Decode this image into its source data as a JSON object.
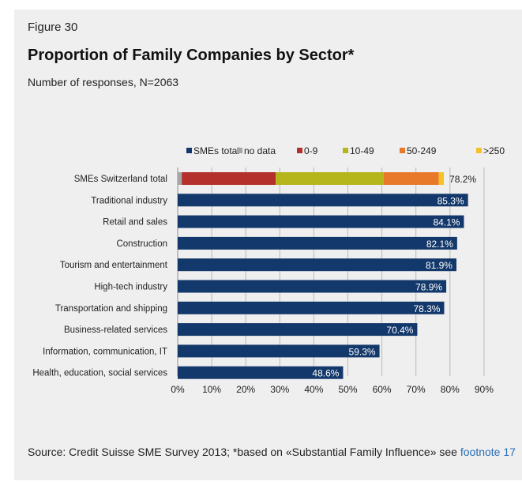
{
  "figure_label": "Figure 30",
  "title": "Proportion of Family Companies by Sector*",
  "subtitle": "Number of responses, N=2063",
  "source_text": "Source: Credit Suisse SME Survey 2013; *based on «Substantial Family Influence» see ",
  "source_link": "footnote 17",
  "colors": {
    "background": "#efefef",
    "smes_total": "#13386b",
    "no_data": "#a6a6a6",
    "size_0_9": "#b3302b",
    "size_10_49": "#b5b51c",
    "size_50_249": "#e8792a",
    "size_250_plus": "#f5c22a",
    "link": "#2a6db5"
  },
  "chart_data": {
    "type": "bar",
    "orientation": "horizontal",
    "stacked_first_row": true,
    "xlim": [
      0,
      90
    ],
    "xticks": [
      "0%",
      "10%",
      "20%",
      "30%",
      "40%",
      "50%",
      "60%",
      "70%",
      "80%",
      "90%"
    ],
    "grid": "vertical",
    "legend_position": "top",
    "legend": [
      {
        "label": "SMEs total",
        "color": "#13386b"
      },
      {
        "label": "no data",
        "color": "#a6a6a6"
      },
      {
        "label": "0-9",
        "color": "#b3302b"
      },
      {
        "label": "10-49",
        "color": "#b5b51c"
      },
      {
        "label": "50-249",
        "color": "#e8792a"
      },
      {
        "label": ">250",
        "color": "#f5c22a"
      }
    ],
    "stacked_row": {
      "category": "SMEs Switzerland total",
      "label": "78.2%",
      "segments": [
        {
          "series": "no data",
          "value": 1.2,
          "color": "#a6a6a6"
        },
        {
          "series": "0-9",
          "value": 27.6,
          "color": "#b3302b"
        },
        {
          "series": "10-49",
          "value": 31.7,
          "color": "#b5b51c"
        },
        {
          "series": "50-249",
          "value": 16.2,
          "color": "#e8792a"
        },
        {
          "series": ">250",
          "value": 1.5,
          "color": "#f5c22a"
        }
      ]
    },
    "categories": [
      "Traditional industry",
      "Retail and sales",
      "Construction",
      "Tourism and entertainment",
      "High-tech industry",
      "Transportation and shipping",
      "Business-related services",
      "Information, communication, IT",
      "Health, education, social services"
    ],
    "values": [
      85.3,
      84.1,
      82.1,
      81.9,
      78.9,
      78.3,
      70.4,
      59.3,
      48.6
    ],
    "value_labels": [
      "85.3%",
      "84.1%",
      "82.1%",
      "81.9%",
      "78.9%",
      "78.3%",
      "70.4%",
      "59.3%",
      "48.6%"
    ]
  }
}
